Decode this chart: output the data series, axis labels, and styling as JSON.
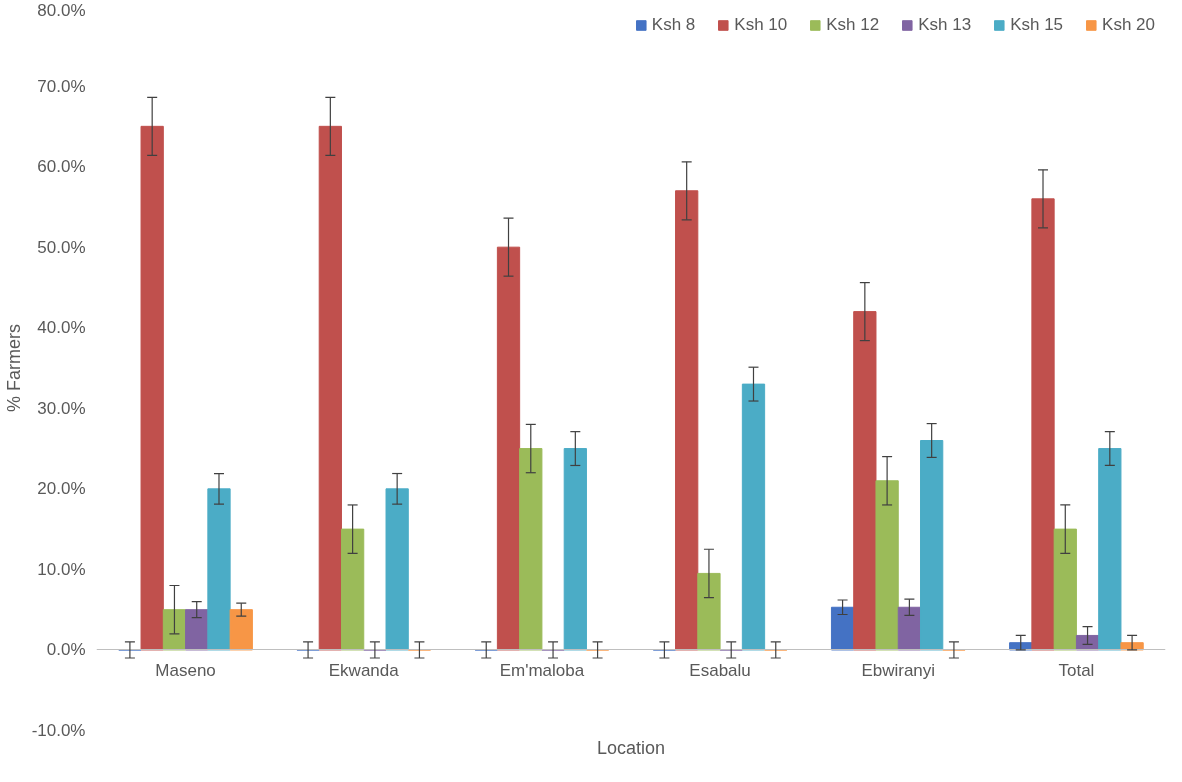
{
  "chart_data": {
    "type": "bar",
    "xlabel": "Location",
    "ylabel": "% Farmers",
    "categories": [
      "Maseno",
      "Ekwanda",
      "Em'maloba",
      "Esabalu",
      "Ebwiranyi",
      "Total"
    ],
    "series": [
      {
        "name": "Ksh 8",
        "color": "#4472c4",
        "values": [
          0,
          0,
          0,
          0,
          5.3,
          0.9
        ],
        "errors": [
          1,
          1,
          1,
          1,
          0.9,
          0.9
        ]
      },
      {
        "name": "Ksh 10",
        "color": "#c0504d",
        "values": [
          65,
          65,
          50,
          57,
          42,
          56
        ],
        "errors": [
          3.6,
          3.6,
          3.6,
          3.6,
          3.6,
          3.6
        ]
      },
      {
        "name": "Ksh 12",
        "color": "#9bbb59",
        "values": [
          5,
          15,
          25,
          9.5,
          21,
          15
        ],
        "errors": [
          3,
          3,
          3,
          3,
          3,
          3
        ]
      },
      {
        "name": "Ksh 13",
        "color": "#8064a2",
        "values": [
          5,
          0,
          0,
          0,
          5.3,
          1.8
        ],
        "errors": [
          1,
          1,
          1,
          1,
          1,
          1.1
        ]
      },
      {
        "name": "Ksh 15",
        "color": "#4bacc6",
        "values": [
          20,
          20,
          25,
          33,
          26,
          25
        ],
        "errors": [
          1.9,
          1.9,
          2.1,
          2.1,
          2.1,
          2.1
        ]
      },
      {
        "name": "Ksh 20",
        "color": "#f79646",
        "values": [
          5,
          0,
          0,
          0,
          0,
          0.9
        ],
        "errors": [
          0.8,
          1,
          1,
          1,
          1,
          0.9
        ]
      }
    ],
    "ylim": [
      -10,
      80
    ],
    "yticks": [
      {
        "value": -10,
        "label": "-10.0%"
      },
      {
        "value": 0,
        "label": "0.0%"
      },
      {
        "value": 10,
        "label": "10.0%"
      },
      {
        "value": 20,
        "label": "20.0%"
      },
      {
        "value": 30,
        "label": "30.0%"
      },
      {
        "value": 40,
        "label": "40.0%"
      },
      {
        "value": 50,
        "label": "50.0%"
      },
      {
        "value": 60,
        "label": "60.0%"
      },
      {
        "value": 70,
        "label": "70.0%"
      },
      {
        "value": 80,
        "label": "80.0%"
      }
    ],
    "grid": false,
    "legend": "top right"
  }
}
